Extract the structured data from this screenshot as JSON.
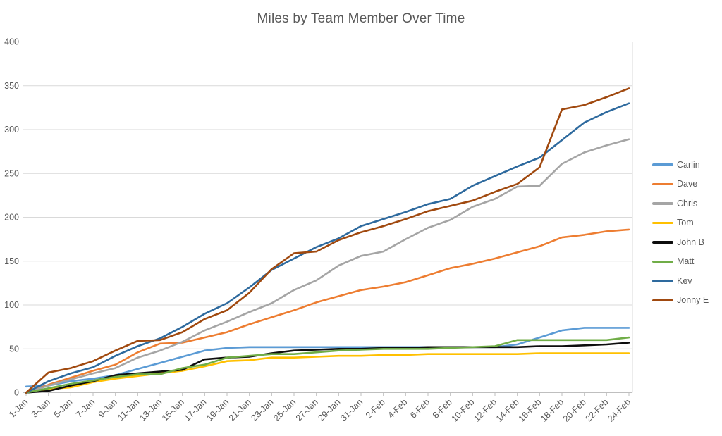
{
  "chart_data": {
    "type": "line",
    "title": "Miles by Team Member Over Time",
    "xlabel": "",
    "ylabel": "",
    "ylim": [
      0,
      400
    ],
    "y_ticks": [
      0,
      50,
      100,
      150,
      200,
      250,
      300,
      350,
      400
    ],
    "grid": "horizontal",
    "legend_position": "right",
    "categories": [
      "1-Jan",
      "3-Jan",
      "5-Jan",
      "7-Jan",
      "9-Jan",
      "11-Jan",
      "13-Jan",
      "15-Jan",
      "17-Jan",
      "19-Jan",
      "21-Jan",
      "23-Jan",
      "25-Jan",
      "27-Jan",
      "29-Jan",
      "31-Jan",
      "2-Feb",
      "4-Feb",
      "6-Feb",
      "8-Feb",
      "10-Feb",
      "12-Feb",
      "14-Feb",
      "16-Feb",
      "18-Feb",
      "20-Feb",
      "22-Feb",
      "24-Feb"
    ],
    "series": [
      {
        "name": "Carlin",
        "color": "#5B9BD5",
        "values": [
          7,
          8,
          13,
          16,
          20,
          27,
          34,
          41,
          48,
          51,
          52,
          52,
          52,
          52,
          52,
          52,
          52,
          52,
          52,
          52,
          52,
          52,
          55,
          63,
          71,
          74,
          74,
          74
        ]
      },
      {
        "name": "Dave",
        "color": "#ED7D31",
        "values": [
          0,
          9,
          17,
          25,
          32,
          46,
          56,
          57,
          63,
          69,
          78,
          86,
          94,
          103,
          110,
          117,
          121,
          126,
          134,
          142,
          147,
          153,
          160,
          167,
          177,
          180,
          184,
          186
        ]
      },
      {
        "name": "Chris",
        "color": "#A5A5A5",
        "values": [
          0,
          8,
          15,
          22,
          28,
          40,
          48,
          58,
          71,
          81,
          92,
          102,
          117,
          128,
          145,
          156,
          161,
          175,
          188,
          197,
          212,
          221,
          235,
          236,
          261,
          274,
          282,
          289
        ]
      },
      {
        "name": "Tom",
        "color": "#FFC000",
        "values": [
          0,
          4,
          6,
          12,
          16,
          19,
          22,
          25,
          30,
          36,
          37,
          40,
          40,
          41,
          42,
          42,
          43,
          43,
          44,
          44,
          44,
          44,
          44,
          45,
          45,
          45,
          45,
          45
        ]
      },
      {
        "name": "John B",
        "color": "#0D0D0D",
        "values": [
          0,
          2,
          8,
          13,
          20,
          22,
          24,
          26,
          38,
          40,
          41,
          45,
          48,
          49,
          50,
          50,
          51,
          51,
          52,
          52,
          52,
          52,
          52,
          53,
          53,
          54,
          55,
          57
        ]
      },
      {
        "name": "Matt",
        "color": "#70AD47",
        "values": [
          0,
          5,
          10,
          14,
          18,
          21,
          21,
          28,
          32,
          40,
          42,
          44,
          44,
          46,
          48,
          49,
          50,
          50,
          50,
          51,
          52,
          53,
          60,
          60,
          60,
          60,
          60,
          63
        ]
      },
      {
        "name": "Kev",
        "color": "#2E6A9E",
        "values": [
          0,
          13,
          22,
          29,
          42,
          53,
          62,
          75,
          90,
          102,
          120,
          140,
          153,
          166,
          176,
          190,
          198,
          206,
          215,
          221,
          236,
          247,
          258,
          268,
          288,
          308,
          320,
          330
        ]
      },
      {
        "name": "Jonny E",
        "color": "#A0490F",
        "values": [
          0,
          23,
          28,
          36,
          48,
          59,
          60,
          69,
          84,
          94,
          114,
          141,
          159,
          161,
          174,
          183,
          190,
          198,
          207,
          213,
          219,
          229,
          238,
          257,
          323,
          328,
          337,
          347
        ]
      }
    ],
    "axis_text_color": "#595959",
    "gridline_color": "#D9D9D9",
    "axis_line_color": "#BFBFBF"
  }
}
